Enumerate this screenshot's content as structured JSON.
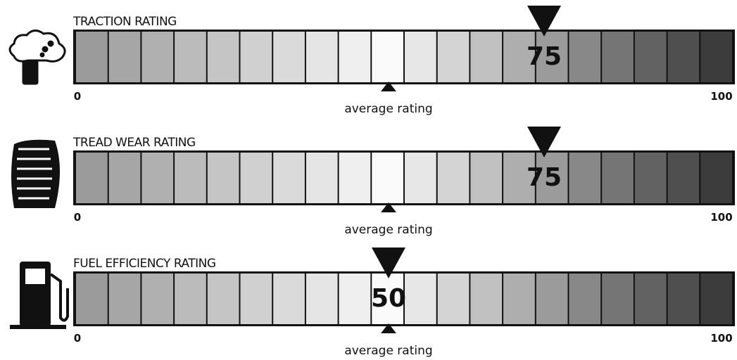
{
  "ratings": [
    {
      "title": "TRACTION RATING",
      "value": 75,
      "value_label": "75",
      "min": 0,
      "max": 100,
      "average": 50,
      "average_label": "average rating"
    },
    {
      "title": "TREAD WEAR RATING",
      "value": 75,
      "value_label": "75",
      "min": 0,
      "max": 100,
      "average": 50,
      "average_label": "average rating"
    },
    {
      "title": "FUEL EFFICIENCY RATING",
      "value": 50,
      "value_label": "50",
      "min": 0,
      "max": 100,
      "average": 50,
      "average_label": "average rating"
    }
  ]
}
